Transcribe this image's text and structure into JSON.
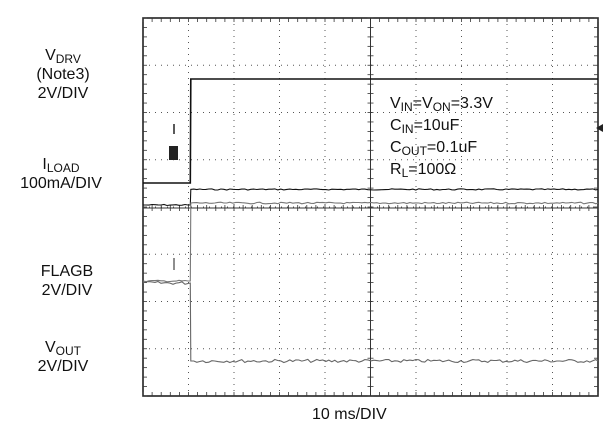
{
  "chart_data": {
    "type": "line",
    "title": "",
    "xlabel": "10 ms/DIV",
    "ylabel": "",
    "grid": true,
    "divisions": {
      "x": 10,
      "y": 8
    },
    "xlim": [
      0,
      100
    ],
    "xunit": "ms",
    "channels": [
      {
        "main": "V",
        "sub": "DRV",
        "note": "(Note3)",
        "scale": "2V/DIV"
      },
      {
        "main": "I",
        "sub": "LOAD",
        "scale": "100mA/DIV"
      },
      {
        "main": "FLAGB",
        "scale": "2V/DIV"
      },
      {
        "main": "V",
        "sub": "OUT",
        "scale": "2V/DIV"
      }
    ],
    "conditions": [
      {
        "parts": [
          [
            "V",
            "IN"
          ],
          [
            "=V",
            "ON"
          ],
          [
            "=3.3V",
            ""
          ]
        ]
      },
      {
        "parts": [
          [
            "C",
            "IN"
          ],
          [
            "=10uF",
            ""
          ]
        ]
      },
      {
        "parts": [
          [
            "C",
            "OUT"
          ],
          [
            "=0.1uF",
            ""
          ]
        ]
      },
      {
        "parts": [
          [
            "R",
            "L"
          ],
          [
            "=100Ω",
            ""
          ]
        ]
      }
    ],
    "series": [
      {
        "name": "VDRV",
        "x": [
          0,
          10.4,
          10.5,
          100
        ],
        "y": [
          0,
          0,
          4.4,
          4.4
        ],
        "unit": "V"
      },
      {
        "name": "ILOAD",
        "x": [
          0,
          10.4,
          10.5,
          100
        ],
        "y": [
          0,
          0,
          33,
          33
        ],
        "unit": "mA"
      },
      {
        "name": "FLAGB",
        "x": [
          0,
          10.4,
          10.5,
          100
        ],
        "y": [
          0,
          0,
          -3.3,
          -3.3
        ],
        "unit": "V"
      },
      {
        "name": "VOUT",
        "x": [
          0,
          10.4,
          10.5,
          100
        ],
        "y": [
          0,
          0,
          3.3,
          3.3
        ],
        "unit": "V"
      }
    ]
  }
}
